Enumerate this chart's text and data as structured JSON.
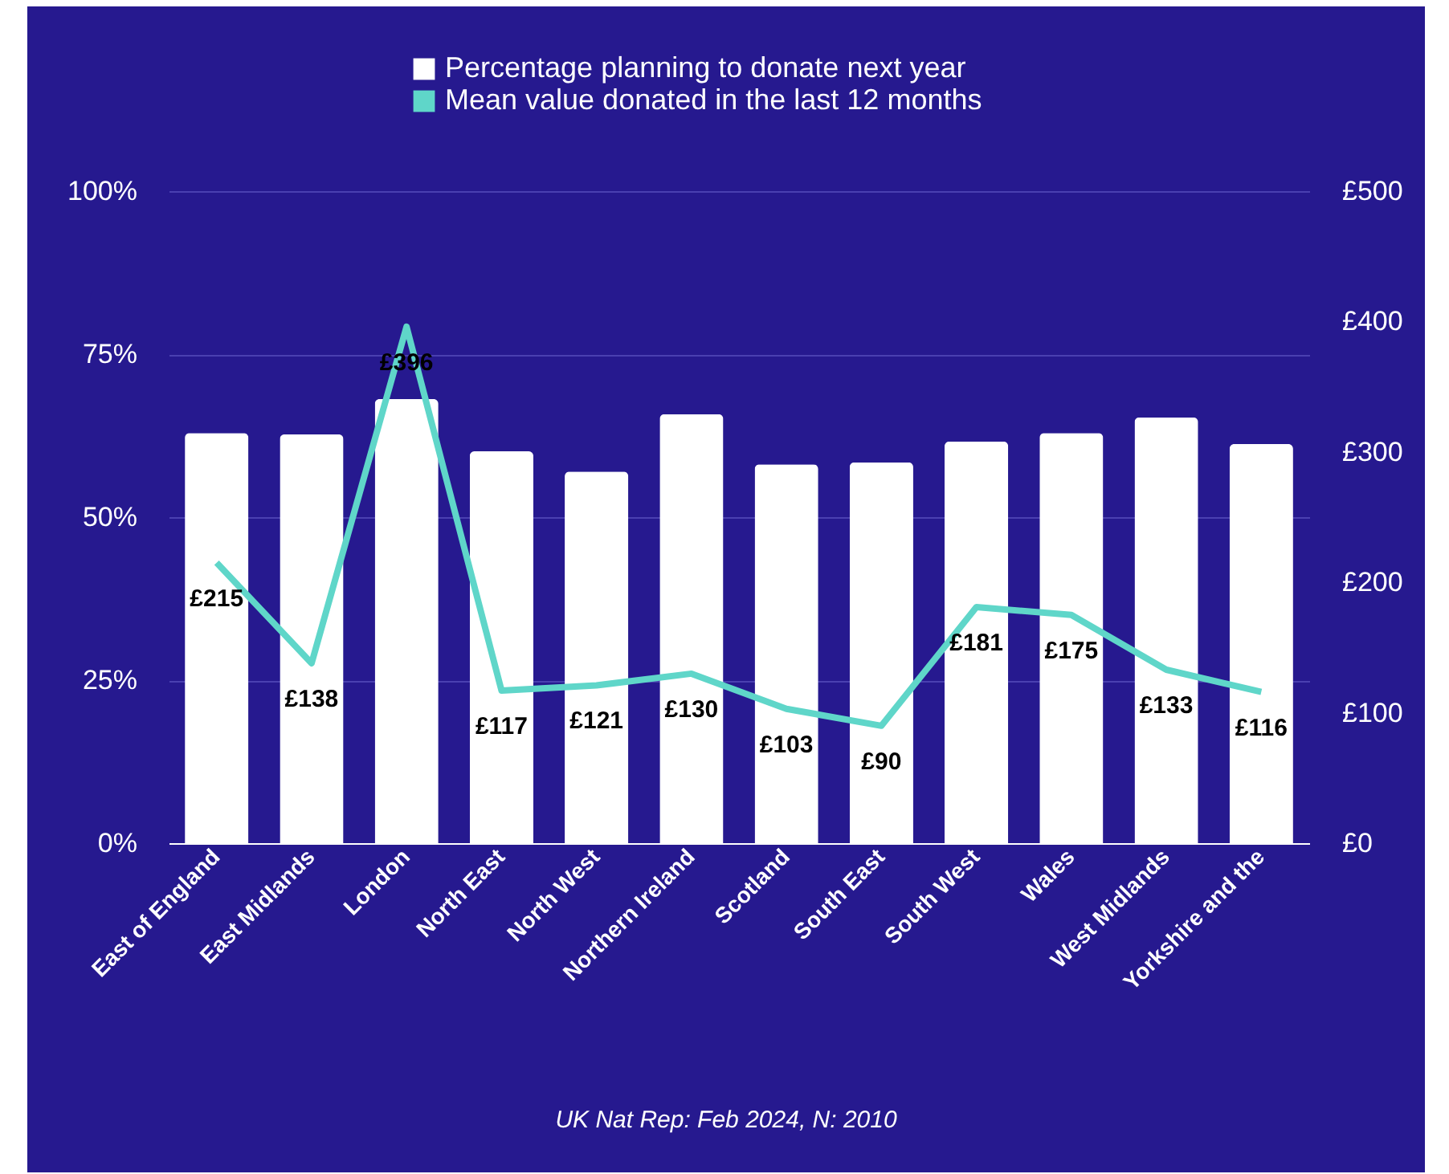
{
  "chart_data": {
    "type": "bar",
    "categories": [
      "East of England",
      "East Midlands",
      "London",
      "North East",
      "North West",
      "Northern Ireland",
      "Scotland",
      "South East",
      "South West",
      "Wales",
      "West Midlands",
      "Yorkshire and the"
    ],
    "series": [
      {
        "name": "Percentage planning to donate next year",
        "color": "#ffffff",
        "values": [
          62.9,
          62.7,
          68.1,
          60.1,
          57.0,
          65.8,
          58.1,
          58.4,
          61.6,
          62.9,
          65.3,
          61.2
        ]
      },
      {
        "name": "Mean value donated in the last 12 months",
        "type": "line",
        "axis": "y2",
        "color": "#5fd6c9",
        "values": [
          215,
          138,
          396,
          117,
          121,
          130,
          103,
          90,
          181,
          175,
          133,
          116
        ],
        "value_labels": [
          "£215",
          "£138",
          "£396",
          "£117",
          "£121",
          "£130",
          "£103",
          "£90",
          "£181",
          "£175",
          "£133",
          "£116"
        ]
      }
    ],
    "ylim": [
      0,
      100
    ],
    "yticks": [
      {
        "value": 0,
        "label": "0%"
      },
      {
        "value": 25,
        "label": "25%"
      },
      {
        "value": 50,
        "label": "50%"
      },
      {
        "value": 75,
        "label": "75%"
      },
      {
        "value": 100,
        "label": "100%"
      }
    ],
    "y2lim": [
      0,
      500
    ],
    "y2ticks": [
      {
        "value": 0,
        "label": "£0"
      },
      {
        "value": 100,
        "label": "£100"
      },
      {
        "value": 200,
        "label": "£200"
      },
      {
        "value": 300,
        "label": "£300"
      },
      {
        "value": 400,
        "label": "£400"
      },
      {
        "value": 500,
        "label": "£500"
      }
    ],
    "grid": "y",
    "legend": "top",
    "annotations": [
      "UK Nat Rep: Feb 2024, N: 2010"
    ]
  }
}
